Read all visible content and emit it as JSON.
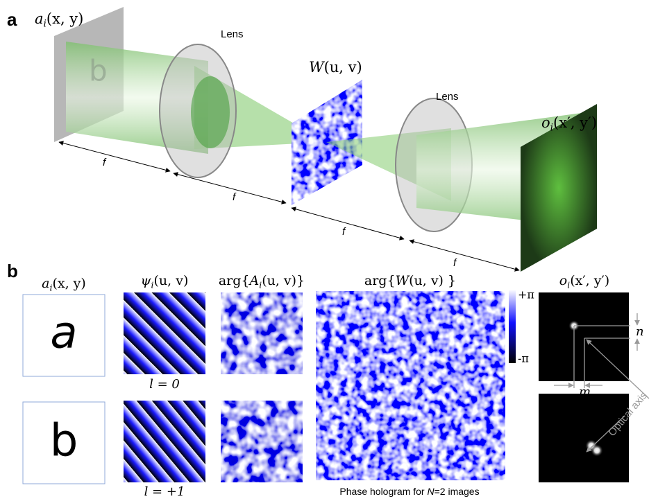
{
  "panel_a": {
    "label": "a",
    "input": {
      "main": "a",
      "sub": "i",
      "args": "(x, y)"
    },
    "input_glyph": "b",
    "lens_1": "Lens",
    "hologram": {
      "main": "W",
      "args": "(u, v)"
    },
    "lens_2": "Lens",
    "output": {
      "main": "o",
      "sub": "i",
      "args": "(x′, y′)"
    },
    "distances": [
      "f",
      "f",
      "f",
      "f"
    ]
  },
  "panel_b": {
    "label": "b",
    "columns": {
      "input": {
        "main": "a",
        "sub": "i",
        "args": "(x, y)"
      },
      "psi": {
        "main": "ψ",
        "sub": "i",
        "args": "(u, v)"
      },
      "A": {
        "pre": "arg{",
        "main": "A",
        "sub": "i",
        "args": "(u, v)}"
      },
      "W": {
        "pre": "arg{",
        "main": "W",
        "args": "(u, v) }"
      },
      "output": {
        "main": "o",
        "sub": "i",
        "args": "(x′, y′)"
      }
    },
    "digits": [
      "a",
      "b"
    ],
    "charges": [
      "l = 0",
      "l = +1"
    ],
    "colorbar": {
      "max": "+π",
      "min": "-π"
    },
    "caption": {
      "before": "Phase hologram for ",
      "N": "N",
      "after": "=2 images"
    },
    "spacing": {
      "n": "n",
      "m": "m"
    },
    "axis_label": "Optical axis"
  }
}
